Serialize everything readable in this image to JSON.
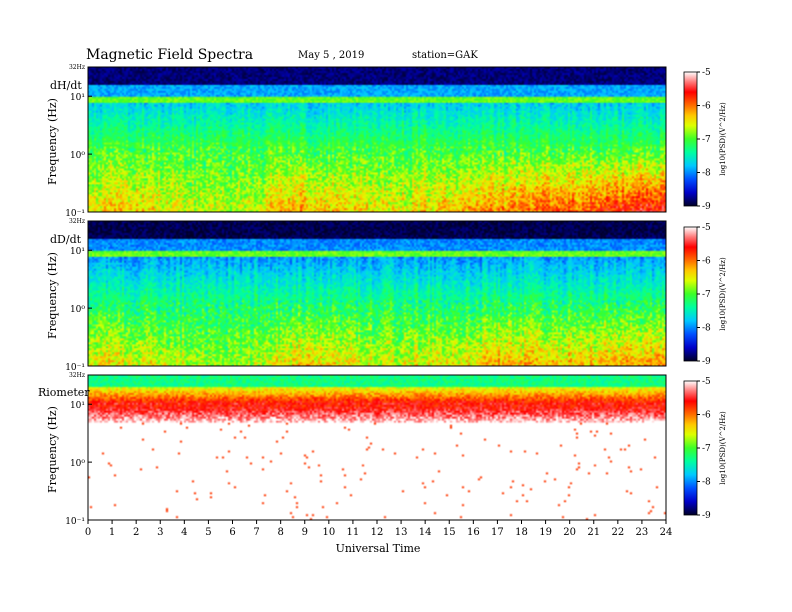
{
  "header": {
    "title": "Magnetic  Field  Spectra",
    "date": "May 5  , 2019",
    "station": "station=GAK"
  },
  "chart_data": {
    "type": "heatmap",
    "title": "Magnetic  Field  Spectra",
    "xlabel": "Universal  Time",
    "x_ticks": [
      "0",
      "1",
      "2",
      "3",
      "4",
      "5",
      "6",
      "7",
      "8",
      "9",
      "10",
      "11",
      "12",
      "13",
      "14",
      "15",
      "16",
      "17",
      "18",
      "19",
      "20",
      "21",
      "22",
      "23",
      "24"
    ],
    "xlim": [
      0,
      24
    ],
    "y_scale": "log",
    "ylim_hz": [
      0.1,
      32
    ],
    "colorbar": {
      "ticks": [
        "-5",
        "-6",
        "-7",
        "-8",
        "-9"
      ],
      "label": "log10(PSD)(V^2/Hz)",
      "range": [
        -9,
        -5
      ],
      "colors": [
        "#000033",
        "#0000ff",
        "#00c0ff",
        "#00ff80",
        "#ffff00",
        "#ff8000",
        "#ff0000",
        "#ffffff"
      ]
    },
    "panels": [
      {
        "name": "dH/dt",
        "ylabel": "Frequency  (Hz)",
        "y_ticks": [
          "32Hz",
          "10¹",
          "10⁰",
          "10⁻¹"
        ],
        "profile_low_freq_level": [
          -6.5,
          -6.4,
          -6.4,
          -6.5,
          -6.6,
          -6.7,
          -6.7,
          -6.6,
          -6.3,
          -6.2,
          -6.3,
          -6.4,
          -6.5,
          -6.5,
          -6.4,
          -6.3,
          -6.2,
          -6.1,
          -6.0,
          -5.9,
          -5.9,
          -5.8,
          -5.7,
          -5.6,
          -5.5
        ],
        "mid_band_level": -7.8,
        "top_band_level": -8.8
      },
      {
        "name": "dD/dt",
        "ylabel": "Frequency  (Hz)",
        "y_ticks": [
          "32Hz",
          "10¹",
          "10⁰",
          "10⁻¹"
        ],
        "profile_low_freq_level": [
          -6.5,
          -6.4,
          -6.5,
          -6.6,
          -6.7,
          -6.8,
          -6.8,
          -6.7,
          -6.4,
          -6.3,
          -6.4,
          -6.5,
          -6.6,
          -6.6,
          -6.5,
          -6.5,
          -6.4,
          -6.2,
          -6.3,
          -6.3,
          -6.3,
          -6.3,
          -6.2,
          -6.2,
          -6.1
        ],
        "mid_band_level": -8.0,
        "top_band_level": -8.9
      },
      {
        "name": "Riometer",
        "ylabel": "Frequency  (Hz)",
        "y_ticks": [
          "32Hz",
          "10¹",
          "10⁰",
          "10⁻¹"
        ],
        "profile_low_freq_level": [
          -5.0,
          -5.0,
          -5.0,
          -5.0,
          -5.0,
          -5.0,
          -5.0,
          -5.0,
          -5.0,
          -5.0,
          -5.0,
          -5.0,
          -5.0,
          -5.0,
          -5.0,
          -5.0,
          -5.0,
          -5.0,
          -5.0,
          -5.0,
          -5.0,
          -5.0,
          -5.0,
          -5.0,
          -5.0
        ],
        "mid_band_level": -6.0,
        "top_band_level": -7.2
      }
    ]
  }
}
